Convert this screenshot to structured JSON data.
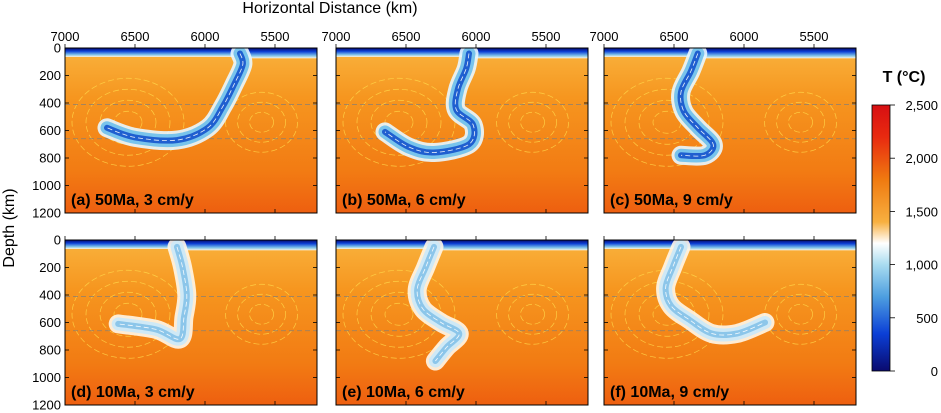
{
  "chart_data": {
    "type": "heatmap",
    "x_axis_title": "Horizontal Distance (km)",
    "y_axis_title": "Depth (km)",
    "x_range": [
      7000,
      5200
    ],
    "x_ticks": [
      7000,
      6500,
      6000,
      5500
    ],
    "y_range": [
      0,
      1200
    ],
    "y_ticks": [
      0,
      200,
      400,
      600,
      800,
      1000,
      1200
    ],
    "colorbar": {
      "title": "T (°C)",
      "range": [
        0,
        2500
      ],
      "ticks": [
        "2,500",
        "2,000",
        "1,500",
        "1,000",
        "500",
        "0"
      ],
      "stops": [
        {
          "value": 0,
          "color": "#0a0a6e"
        },
        {
          "value": 350,
          "color": "#0b3fd6"
        },
        {
          "value": 700,
          "color": "#4e9fe0"
        },
        {
          "value": 1000,
          "color": "#a9dcf0"
        },
        {
          "value": 1200,
          "color": "#ffffff"
        },
        {
          "value": 1400,
          "color": "#f8b040"
        },
        {
          "value": 1800,
          "color": "#f07a10"
        },
        {
          "value": 2200,
          "color": "#e82a10"
        },
        {
          "value": 2500,
          "color": "#d70f12"
        }
      ]
    },
    "panels": [
      {
        "label": "(a) 50Ma, 3 cm/y",
        "slab_age_Ma": 50,
        "velocity_cm_per_yr": 3,
        "slab_centerline": [
          [
            5750,
            40
          ],
          [
            5730,
            120
          ],
          [
            5790,
            260
          ],
          [
            5870,
            420
          ],
          [
            5980,
            580
          ],
          [
            6200,
            670
          ],
          [
            6500,
            650
          ],
          [
            6700,
            580
          ]
        ]
      },
      {
        "label": "(b) 50Ma, 6 cm/y",
        "slab_age_Ma": 50,
        "velocity_cm_per_yr": 6,
        "slab_centerline": [
          [
            6050,
            40
          ],
          [
            6070,
            150
          ],
          [
            6130,
            300
          ],
          [
            6140,
            450
          ],
          [
            6020,
            560
          ],
          [
            6050,
            700
          ],
          [
            6300,
            760
          ],
          [
            6480,
            720
          ],
          [
            6650,
            610
          ]
        ]
      },
      {
        "label": "(c) 50Ma, 9 cm/y",
        "slab_age_Ma": 50,
        "velocity_cm_per_yr": 9,
        "slab_centerline": [
          [
            6330,
            40
          ],
          [
            6380,
            170
          ],
          [
            6450,
            320
          ],
          [
            6430,
            460
          ],
          [
            6330,
            580
          ],
          [
            6220,
            700
          ],
          [
            6280,
            780
          ],
          [
            6450,
            780
          ]
        ]
      },
      {
        "label": "(d) 10Ma, 3 cm/y",
        "slab_age_Ma": 10,
        "velocity_cm_per_yr": 3,
        "slab_centerline": [
          [
            6200,
            50
          ],
          [
            6160,
            200
          ],
          [
            6130,
            400
          ],
          [
            6150,
            560
          ],
          [
            6180,
            720
          ],
          [
            6350,
            650
          ],
          [
            6620,
            610
          ]
        ]
      },
      {
        "label": "(e) 10Ma, 6 cm/y",
        "slab_age_Ma": 10,
        "velocity_cm_per_yr": 6,
        "slab_centerline": [
          [
            6300,
            50
          ],
          [
            6360,
            200
          ],
          [
            6420,
            360
          ],
          [
            6380,
            500
          ],
          [
            6250,
            600
          ],
          [
            6120,
            680
          ],
          [
            6210,
            780
          ],
          [
            6290,
            880
          ]
        ]
      },
      {
        "label": "(f) 10Ma, 9 cm/y",
        "slab_age_Ma": 10,
        "velocity_cm_per_yr": 9,
        "slab_centerline": [
          [
            6450,
            50
          ],
          [
            6510,
            200
          ],
          [
            6560,
            350
          ],
          [
            6520,
            480
          ],
          [
            6390,
            580
          ],
          [
            6230,
            680
          ],
          [
            6050,
            680
          ],
          [
            5850,
            600
          ]
        ]
      }
    ]
  }
}
